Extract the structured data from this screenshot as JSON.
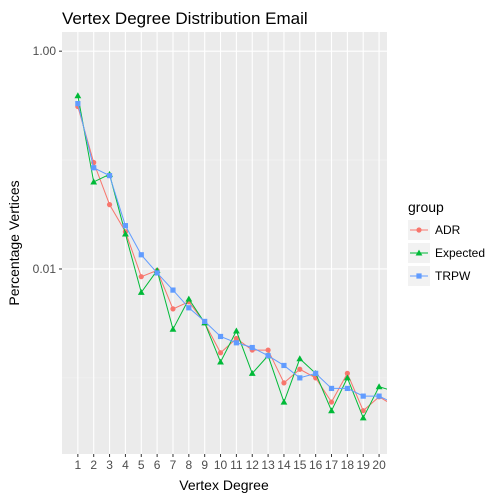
{
  "chart_data": {
    "type": "line",
    "title": "Vertex Degree Distribution Email",
    "xlabel": "Vertex Degree",
    "ylabel": "Percentage Vertices",
    "y_scale": "log10",
    "ylim": [
      0.0002,
      1.5
    ],
    "xlim": [
      0,
      20.5
    ],
    "x_ticks": [
      1,
      2,
      3,
      4,
      5,
      6,
      7,
      8,
      9,
      10,
      11,
      12,
      13,
      14,
      15,
      16,
      17,
      18,
      19,
      20
    ],
    "y_ticks": [
      {
        "value": 1.0,
        "label": "1.00"
      },
      {
        "value": 0.01,
        "label": "0.01"
      }
    ],
    "grid": true,
    "panel_background": "#ebebeb",
    "legend": {
      "title": "group",
      "position": "right"
    },
    "x": [
      1,
      2,
      3,
      4,
      5,
      6,
      7,
      8,
      9,
      10,
      11,
      12,
      13,
      14,
      15,
      16,
      17,
      18,
      19,
      20,
      21
    ],
    "series": [
      {
        "name": "ADR",
        "color": "#f8766d",
        "marker": "circle",
        "values": [
          0.31,
          0.095,
          0.039,
          0.022,
          0.0085,
          0.0097,
          0.0043,
          0.005,
          0.0032,
          0.0017,
          0.0023,
          0.0018,
          0.0018,
          0.0009,
          0.0012,
          0.001,
          0.0006,
          0.0011,
          0.0005,
          0.00067,
          0.00055
        ]
      },
      {
        "name": "Expected",
        "color": "#00ba38",
        "marker": "triangle",
        "values": [
          0.39,
          0.063,
          0.074,
          0.021,
          0.0061,
          0.0097,
          0.0028,
          0.0053,
          0.0032,
          0.0014,
          0.0027,
          0.0011,
          0.0016,
          0.0006,
          0.0015,
          0.0011,
          0.0005,
          0.001,
          0.00043,
          0.00083,
          0.00075
        ]
      },
      {
        "name": "TRPW",
        "color": "#619cff",
        "marker": "square",
        "values": [
          0.33,
          0.085,
          0.072,
          0.025,
          0.0135,
          0.0092,
          0.0064,
          0.0044,
          0.0033,
          0.0024,
          0.0021,
          0.0019,
          0.0016,
          0.0013,
          0.001,
          0.0011,
          0.0008,
          0.0008,
          0.00068,
          0.00068,
          0.00058
        ]
      }
    ]
  }
}
